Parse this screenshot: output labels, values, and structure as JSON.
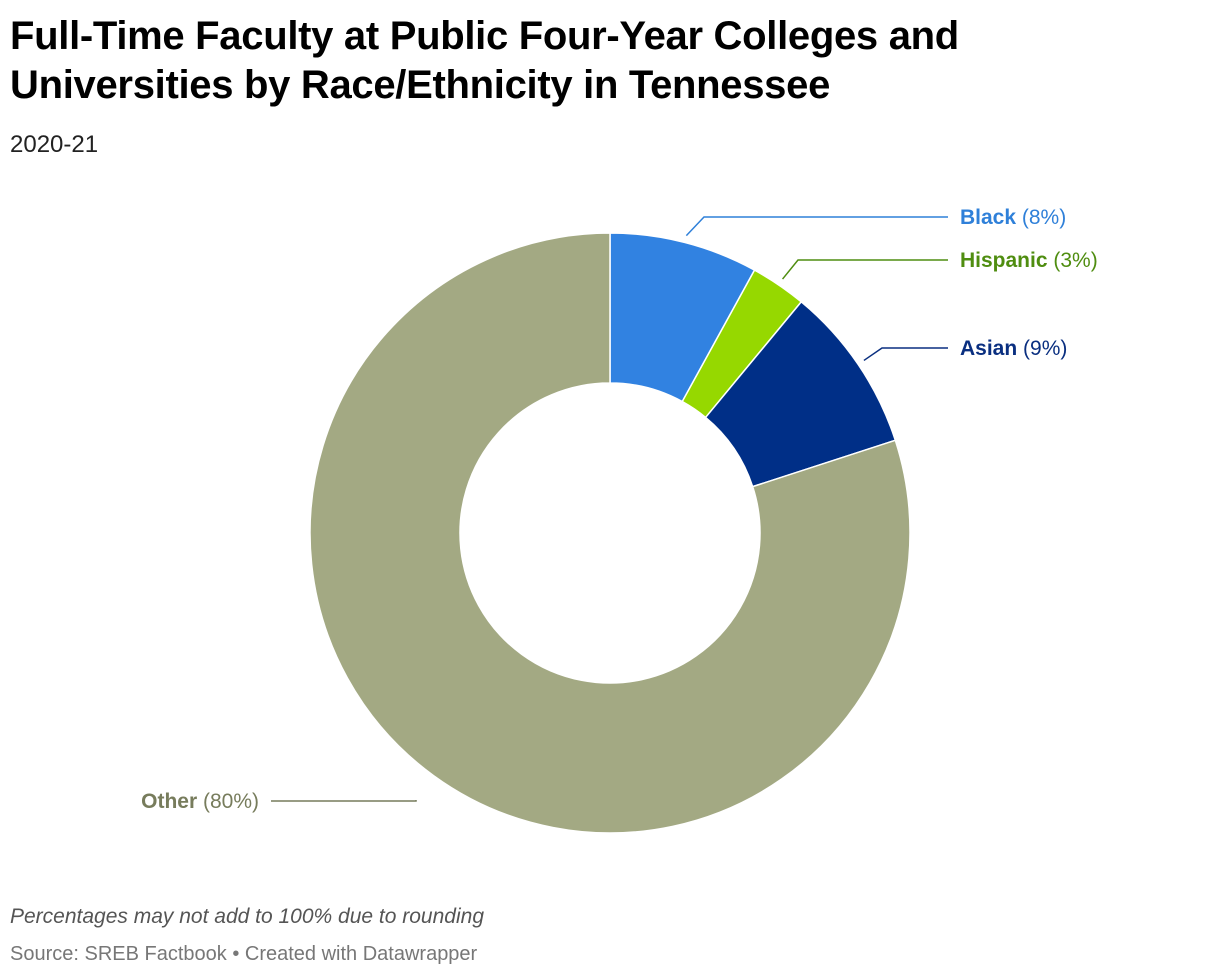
{
  "chart_data": {
    "type": "pie",
    "title": "Full-Time Faculty at Public Four-Year Colleges and Universities by Race/Ethnicity in Tennessee",
    "subtitle": "2020-21",
    "donut": true,
    "slices": [
      {
        "label": "Black",
        "value": 8,
        "display": "(8%)",
        "color": "#3182e1",
        "label_color": "#2f80d9"
      },
      {
        "label": "Hispanic",
        "value": 3,
        "display": "(3%)",
        "color": "#96d800",
        "label_color": "#4f8d10"
      },
      {
        "label": "Asian",
        "value": 9,
        "display": "(9%)",
        "color": "#002f87",
        "label_color": "#0a2f80"
      },
      {
        "label": "Other",
        "value": 80,
        "display": "(80%)",
        "color": "#a3a983",
        "label_color": "#777c5c"
      }
    ],
    "notes": "Percentages may not add to 100% due to rounding",
    "source": "Source: SREB Factbook • Created with Datawrapper"
  }
}
